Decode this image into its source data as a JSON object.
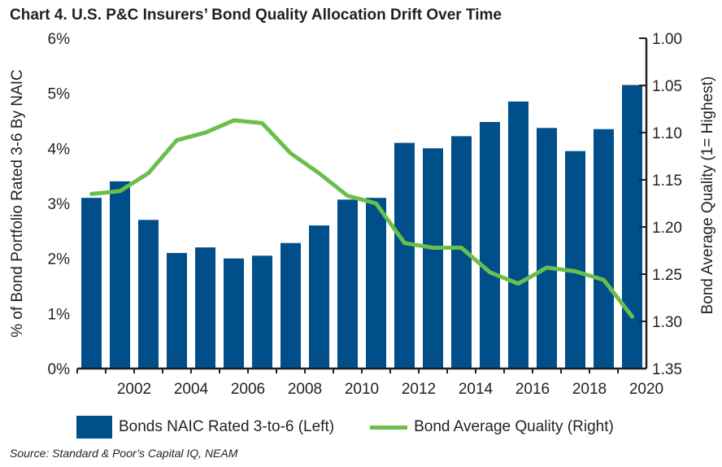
{
  "title": "Chart 4. U.S. P&C Insurers’ Bond Quality Allocation Drift Over Time",
  "source": "Source: Standard & Poor’s Capital IQ, NEAM",
  "colors": {
    "bars": "#004f8b",
    "line": "#6abf4b",
    "axis": "#231f20"
  },
  "chart_data": {
    "type": "bar",
    "x": [
      2000,
      2001,
      2002,
      2003,
      2004,
      2005,
      2006,
      2007,
      2008,
      2009,
      2010,
      2011,
      2012,
      2013,
      2014,
      2015,
      2016,
      2017,
      2018,
      2019
    ],
    "x_tick_labels": [
      "2002",
      "2004",
      "2006",
      "2008",
      "2010",
      "2012",
      "2014",
      "2016",
      "2018",
      "2020"
    ],
    "y_left": {
      "label": "% of Bond Portfolio Rated 3-6 By NAIC",
      "ylim": [
        0,
        6
      ],
      "tick_labels": [
        "0%",
        "1%",
        "2%",
        "3%",
        "4%",
        "5%",
        "6%"
      ]
    },
    "y_right": {
      "label": "Bond Average Quality (1= Highest)",
      "ylim": [
        1.0,
        1.35
      ],
      "inverted": true,
      "tick_labels": [
        "1.00",
        "1.05",
        "1.10",
        "1.15",
        "1.20",
        "1.25",
        "1.30",
        "1.35"
      ]
    },
    "grid": false,
    "legend_position": "bottom",
    "series": [
      {
        "name": "Bonds NAIC Rated 3-to-6 (Left)",
        "type": "bar",
        "axis": "left",
        "values": [
          3.1,
          3.4,
          2.7,
          2.1,
          2.2,
          2.0,
          2.05,
          2.28,
          2.6,
          3.07,
          3.1,
          4.1,
          4.0,
          4.22,
          4.48,
          4.85,
          4.37,
          3.95,
          4.35,
          5.15
        ]
      },
      {
        "name": "Bond Average Quality (Right)",
        "type": "line",
        "axis": "right",
        "values": [
          1.165,
          1.162,
          1.143,
          1.108,
          1.1,
          1.087,
          1.09,
          1.122,
          1.143,
          1.167,
          1.175,
          1.217,
          1.222,
          1.222,
          1.248,
          1.26,
          1.243,
          1.247,
          1.256,
          1.295
        ]
      }
    ]
  }
}
